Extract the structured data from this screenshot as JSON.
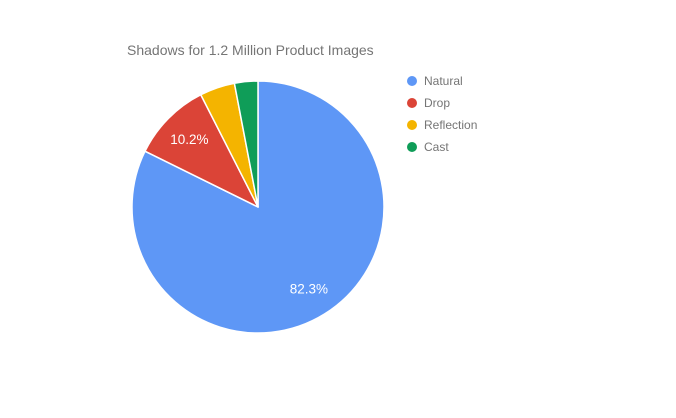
{
  "chart_data": {
    "type": "pie",
    "title": "Shadows for 1.2 Million Product Images",
    "title_color": "#757575",
    "legend_position": "right",
    "legend_text_color": "#757575",
    "direction": "clockwise",
    "start_angle_deg": 0,
    "slice_separator_color": "#ffffff",
    "slice_label_color": "#ffffff",
    "slices": [
      {
        "label": "Natural",
        "pct": 82.3,
        "pct_label": "82.3%",
        "color": "#5E97F6"
      },
      {
        "label": "Drop",
        "pct": 10.2,
        "pct_label": "10.2%",
        "color": "#DB4437"
      },
      {
        "label": "Reflection",
        "pct": 4.5,
        "pct_label": "",
        "color": "#F4B400"
      },
      {
        "label": "Cast",
        "pct": 3.0,
        "pct_label": "",
        "color": "#0F9D58"
      }
    ]
  }
}
